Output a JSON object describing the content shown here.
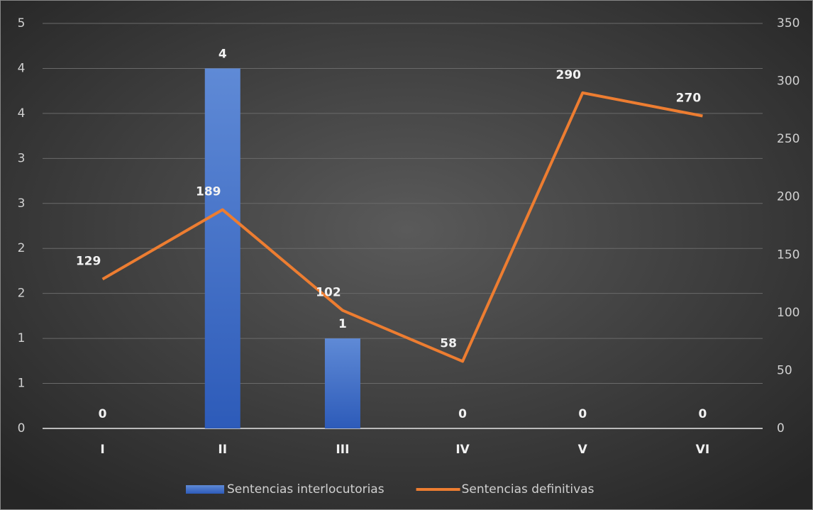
{
  "chart_data": {
    "type": "bar-line",
    "categories": [
      "I",
      "II",
      "III",
      "IV",
      "V",
      "VI"
    ],
    "series": [
      {
        "name": "Sentencias interlocutorias",
        "type": "bar",
        "color": "#3f6fcc",
        "values": [
          0,
          4,
          1,
          0,
          0,
          0
        ]
      },
      {
        "name": "Sentencias definitivas",
        "type": "line",
        "axis": "y2",
        "color": "#ed7d31",
        "values": [
          129,
          189,
          102,
          58,
          290,
          270
        ]
      }
    ],
    "ylim": [
      0,
      4.5
    ],
    "yticks": [
      0,
      {
        "value": 0.5,
        "label": "1"
      },
      1,
      {
        "value": 1.5,
        "label": "2"
      },
      2,
      {
        "value": 2.5,
        "label": "3"
      },
      3,
      {
        "value": 3.5,
        "label": "4"
      },
      4,
      {
        "value": 4.5,
        "label": "5"
      }
    ],
    "y2lim": [
      0,
      350
    ],
    "y2ticks": [
      0,
      50,
      100,
      150,
      200,
      250,
      300,
      350
    ],
    "grid": true,
    "legend": "bottom"
  }
}
